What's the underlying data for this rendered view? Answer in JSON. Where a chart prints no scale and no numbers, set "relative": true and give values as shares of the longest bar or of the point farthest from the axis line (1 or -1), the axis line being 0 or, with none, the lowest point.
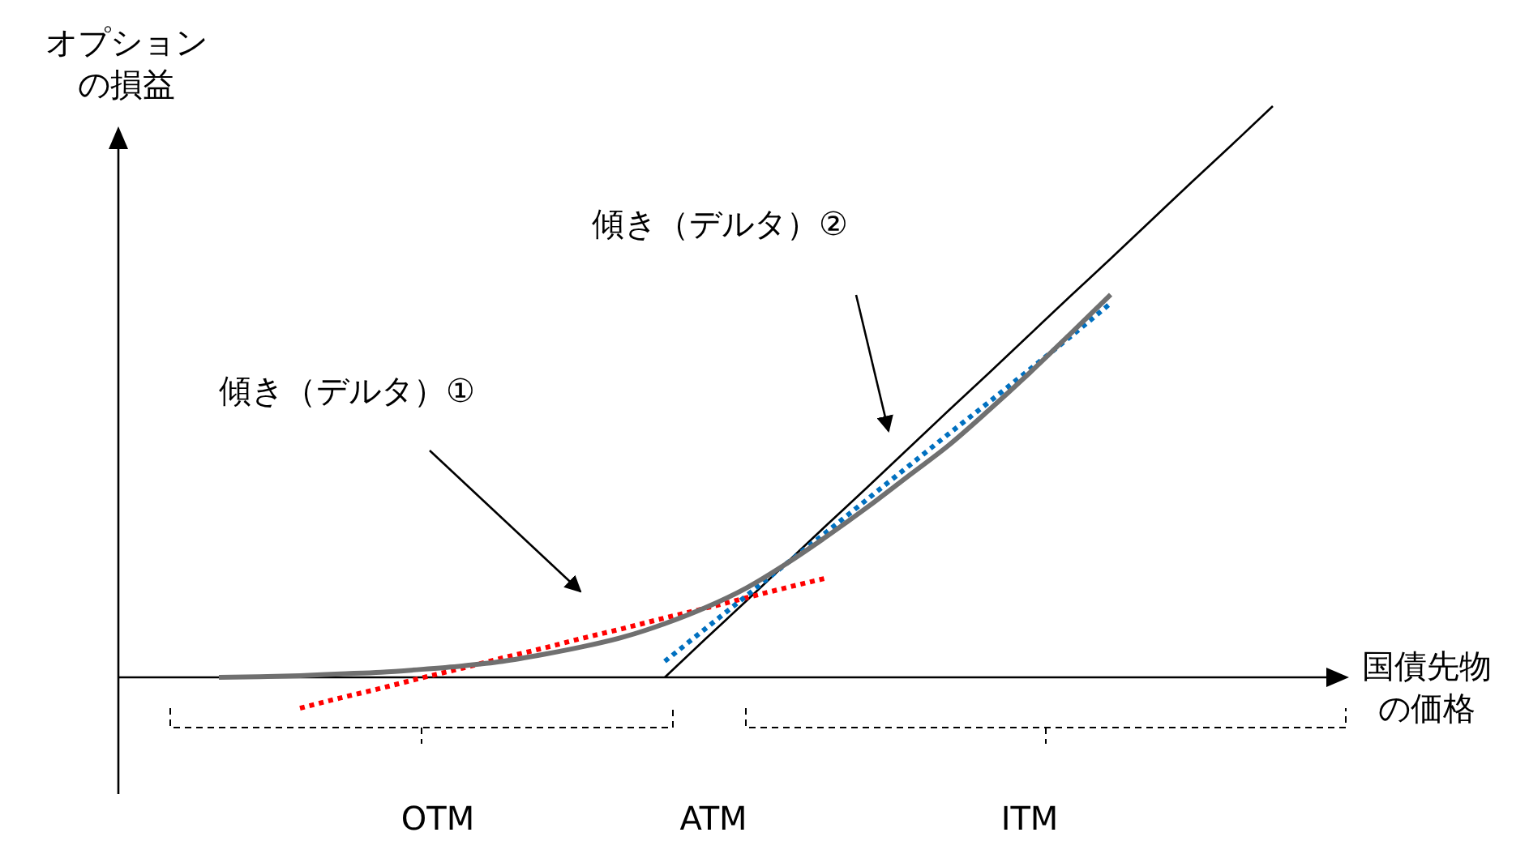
{
  "chart_data": {
    "type": "line",
    "relative": true,
    "xlabel": "国債先物の価格",
    "ylabel": "オプションの損益",
    "marker": "none",
    "categories": [
      null,
      null,
      null,
      null,
      null,
      null,
      null,
      null,
      null,
      null,
      null,
      null,
      null,
      null,
      null,
      null,
      null,
      null,
      null,
      null,
      null,
      null,
      null,
      null,
      null,
      null,
      null,
      null,
      null
    ],
    "series": [
      {
        "color": "#000000",
        "line_style": "solid",
        "values": [
          null,
          null,
          null,
          null,
          null,
          null,
          null,
          null,
          null,
          null,
          null,
          null,
          0,
          0.067,
          0.133,
          0.2,
          0.267,
          0.333,
          0.4,
          0.467,
          0.533,
          0.6,
          0.667,
          0.733,
          0.8,
          0.867,
          0.933,
          1.0,
          null
        ]
      },
      {
        "color": "#ff0000",
        "line_style": "dotted",
        "values": [
          null,
          null,
          null,
          -0.054,
          -0.036,
          -0.019,
          -0.001,
          0.016,
          0.034,
          0.051,
          0.069,
          0.086,
          0.104,
          0.121,
          0.139,
          0.157,
          0.174,
          null,
          null,
          null,
          null,
          null,
          null,
          null,
          null,
          null,
          null,
          null,
          null
        ]
      },
      {
        "color": "#0070c0",
        "line_style": "dotted",
        "values": [
          null,
          null,
          null,
          null,
          null,
          null,
          null,
          null,
          null,
          null,
          null,
          null,
          0.028,
          0.085,
          0.142,
          0.199,
          0.255,
          0.312,
          0.369,
          0.426,
          0.482,
          0.539,
          0.596,
          0.655,
          null,
          null,
          null,
          null,
          null
        ]
      },
      {
        "color": "#707070",
        "line_style": "solid",
        "values": [
          null,
          0,
          0.001,
          0.003,
          0.006,
          0.009,
          0.014,
          0.02,
          0.028,
          0.04,
          0.054,
          0.071,
          0.094,
          0.122,
          0.156,
          0.199,
          0.247,
          0.298,
          0.352,
          0.406,
          0.468,
          0.533,
          0.601,
          0.67,
          null,
          null,
          null,
          null,
          null
        ]
      }
    ],
    "annotations": [
      "傾き（デルタ）②",
      "傾き（デルタ）①",
      "OTM",
      "ATM",
      "ITM"
    ]
  }
}
